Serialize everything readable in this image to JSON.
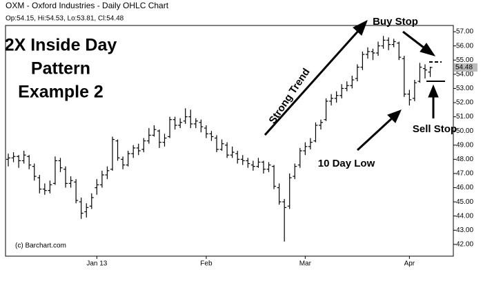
{
  "chart_data": {
    "type": "ohlc",
    "title": "OXM - Oxford Industries - Daily OHLC Chart",
    "ohlc_label": "Op:54.15, Hi:54.53, Lo:53.81, Cl:54.48",
    "color": "#000000",
    "grid": false,
    "categories": [
      null,
      null,
      null,
      null,
      null,
      null,
      null,
      null,
      null,
      null,
      null,
      null,
      null,
      null,
      null,
      null,
      null,
      "Jan 13",
      null,
      null,
      null,
      null,
      null,
      null,
      null,
      null,
      null,
      null,
      null,
      null,
      null,
      null,
      null,
      null,
      null,
      null,
      null,
      null,
      "Feb",
      null,
      null,
      null,
      null,
      null,
      null,
      null,
      null,
      null,
      null,
      null,
      null,
      null,
      null,
      null,
      null,
      null,
      null,
      "Mar",
      null,
      null,
      null,
      null,
      null,
      null,
      null,
      null,
      null,
      null,
      null,
      null,
      null,
      null,
      null,
      null,
      null,
      null,
      null,
      "Apr",
      null,
      null,
      null,
      null
    ],
    "open": [
      48.0,
      48.1,
      48.2,
      47.9,
      48.2,
      47.5,
      46.7,
      45.9,
      45.8,
      46.3,
      47.9,
      47.3,
      46.3,
      46.4,
      45.0,
      44.3,
      44.7,
      46.0,
      46.2,
      46.9,
      47.3,
      49.3,
      48.0,
      47.6,
      48.4,
      48.8,
      48.7,
      49.3,
      49.7,
      50.0,
      49.2,
      49.6,
      50.8,
      50.4,
      50.7,
      51.0,
      50.5,
      50.6,
      50.2,
      49.8,
      49.5,
      48.7,
      49.0,
      48.3,
      48.4,
      48.0,
      47.9,
      47.6,
      47.5,
      47.8,
      47.3,
      47.5,
      46.0,
      45.0,
      44.7,
      46.8,
      47.6,
      48.6,
      48.9,
      49.3,
      50.4,
      50.8,
      52.1,
      52.3,
      52.5,
      53.0,
      53.2,
      53.7,
      54.5,
      55.4,
      55.6,
      55.5,
      56.0,
      56.4,
      56.1,
      56.2,
      55.1,
      52.6,
      52.3,
      53.5,
      54.4,
      54.15
    ],
    "high": [
      48.4,
      48.5,
      48.3,
      48.6,
      48.3,
      47.7,
      46.9,
      46.3,
      46.5,
      48.2,
      48.1,
      47.5,
      46.8,
      46.6,
      45.3,
      44.9,
      45.6,
      46.6,
      47.2,
      47.5,
      49.6,
      49.4,
      48.2,
      48.6,
      49.0,
      49.1,
      49.5,
      50.2,
      50.4,
      50.1,
      49.8,
      51.0,
      51.0,
      50.9,
      51.6,
      51.5,
      50.9,
      50.8,
      50.4,
      50.0,
      49.7,
      49.4,
      49.2,
      48.9,
      48.6,
      48.3,
      48.1,
      47.9,
      48.1,
      47.9,
      47.8,
      47.6,
      46.3,
      45.2,
      47.0,
      47.7,
      48.8,
      49.2,
      49.5,
      50.6,
      50.8,
      52.3,
      52.6,
      52.8,
      53.3,
      53.5,
      53.9,
      54.7,
      55.6,
      55.9,
      55.8,
      56.3,
      56.7,
      56.6,
      56.5,
      56.3,
      55.3,
      52.9,
      53.6,
      54.8,
      54.7,
      54.53
    ],
    "low": [
      47.5,
      47.8,
      47.4,
      47.7,
      47.3,
      46.5,
      45.6,
      45.5,
      45.6,
      46.2,
      47.1,
      46.0,
      46.0,
      44.9,
      43.8,
      43.9,
      44.5,
      45.5,
      46.0,
      46.6,
      47.2,
      47.9,
      47.3,
      47.5,
      48.1,
      48.3,
      48.5,
      49.1,
      49.6,
      48.8,
      48.9,
      49.5,
      50.1,
      50.2,
      50.5,
      50.2,
      50.2,
      49.9,
      49.5,
      49.3,
      48.5,
      48.6,
      48.1,
      48.1,
      47.7,
      47.6,
      47.4,
      47.2,
      47.4,
      47.0,
      47.1,
      45.9,
      44.8,
      42.2,
      44.5,
      46.6,
      47.4,
      48.3,
      48.7,
      49.2,
      50.1,
      50.7,
      51.8,
      52.0,
      52.3,
      52.8,
      53.0,
      53.5,
      54.3,
      55.1,
      55.0,
      55.3,
      55.8,
      55.7,
      55.9,
      55.0,
      52.4,
      51.8,
      52.1,
      53.4,
      53.7,
      53.81
    ],
    "close": [
      48.1,
      48.2,
      47.9,
      48.3,
      47.6,
      46.8,
      45.9,
      45.8,
      46.2,
      47.9,
      47.4,
      46.3,
      46.5,
      45.1,
      44.2,
      44.6,
      45.3,
      46.2,
      46.9,
      47.2,
      49.4,
      48.1,
      47.6,
      48.4,
      48.8,
      48.6,
      49.3,
      49.7,
      50.1,
      49.2,
      49.5,
      50.8,
      50.4,
      50.6,
      51.0,
      50.5,
      50.7,
      50.3,
      49.8,
      49.6,
      48.7,
      49.1,
      48.3,
      48.5,
      48.0,
      47.9,
      47.7,
      47.5,
      47.8,
      47.3,
      47.6,
      46.1,
      45.0,
      44.6,
      46.7,
      47.5,
      48.6,
      48.9,
      49.2,
      50.4,
      50.6,
      52.1,
      52.3,
      52.5,
      53.0,
      53.2,
      53.6,
      54.5,
      55.4,
      55.6,
      55.5,
      56.0,
      56.4,
      56.1,
      56.3,
      55.2,
      52.6,
      52.2,
      53.4,
      54.5,
      54.3,
      54.48
    ],
    "ylim": [
      41.17,
      57.44
    ],
    "yticks": [
      {
        "value": 42,
        "label": "42.00"
      },
      {
        "value": 43,
        "label": "43.00"
      },
      {
        "value": 44,
        "label": "44.00"
      },
      {
        "value": 45,
        "label": "45.00"
      },
      {
        "value": 46,
        "label": "46.00"
      },
      {
        "value": 47,
        "label": "47.00"
      },
      {
        "value": 48,
        "label": "48.00"
      },
      {
        "value": 49,
        "label": "49.00"
      },
      {
        "value": 50,
        "label": "50.00"
      },
      {
        "value": 51,
        "label": "51.00"
      },
      {
        "value": 52,
        "label": "52.00"
      },
      {
        "value": 53,
        "label": "53.00"
      },
      {
        "value": 54,
        "label": "54.00"
      },
      {
        "value": 55,
        "label": "55.00"
      },
      {
        "value": 56,
        "label": "56.00"
      },
      {
        "value": 57,
        "label": "57.00"
      }
    ],
    "annotations": {
      "pattern": [
        "2X Inside Day",
        "Pattern",
        "Example 2"
      ],
      "trend": "Strong Trend",
      "buy_stop": "Buy Stop",
      "sell_stop": "Sell Stop",
      "low": "10 Day Low",
      "credit": "(c) Barchart.com"
    }
  }
}
